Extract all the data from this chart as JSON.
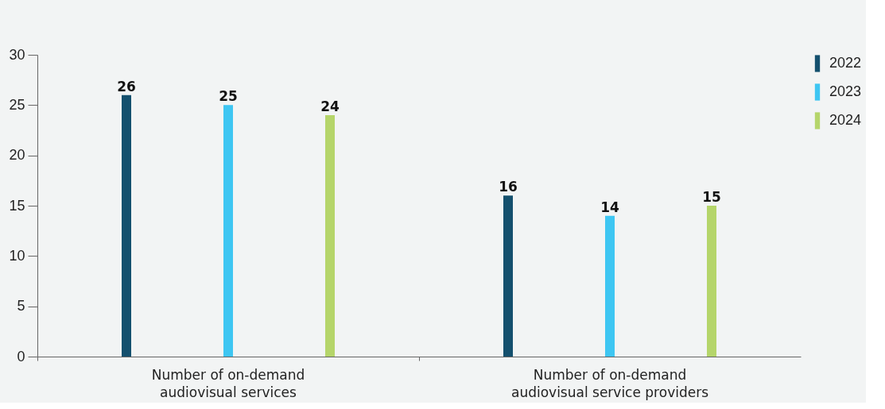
{
  "chart_data": {
    "type": "bar",
    "categories": [
      "Number of on-demand\naudiovisual services",
      "Number of on-demand\naudiovisual service providers"
    ],
    "series": [
      {
        "name": "2022",
        "color": "#14506e",
        "values": [
          26,
          16
        ]
      },
      {
        "name": "2023",
        "color": "#3ec6f2",
        "values": [
          25,
          14
        ]
      },
      {
        "name": "2024",
        "color": "#b5d56a",
        "values": [
          24,
          15
        ]
      }
    ],
    "ylim": [
      0,
      30
    ],
    "yticks": [
      0,
      5,
      10,
      15,
      20,
      25,
      30
    ],
    "grid": false,
    "legend": "top right",
    "data_labels": true
  }
}
